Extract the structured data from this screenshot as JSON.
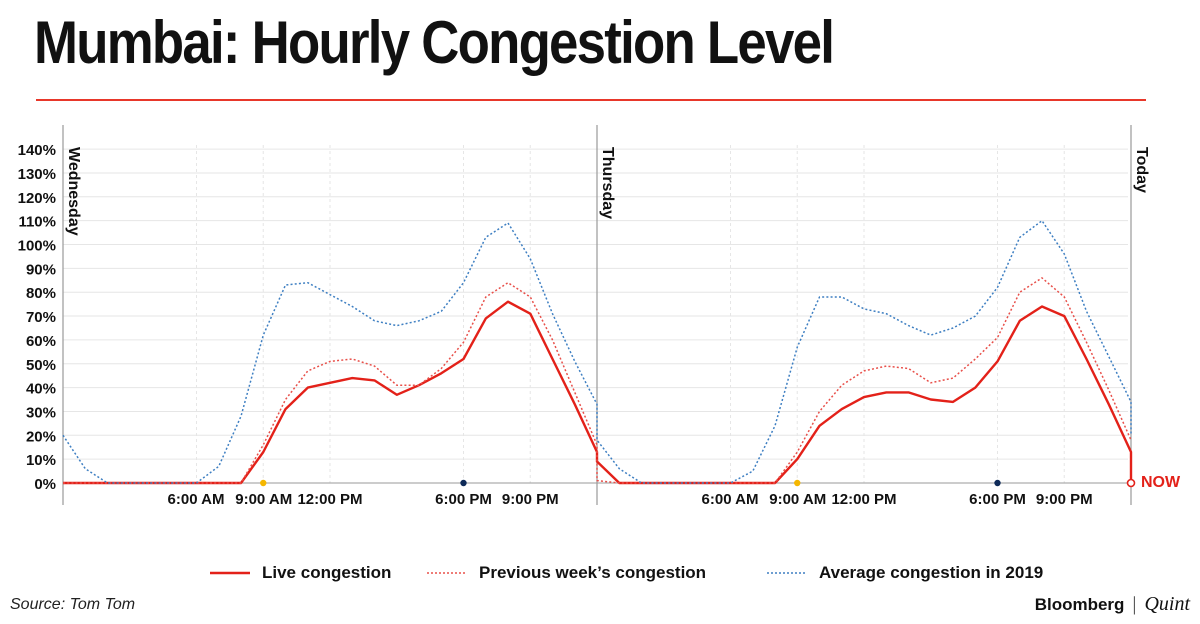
{
  "title": "Mumbai: Hourly Congestion Level",
  "colors": {
    "accent": "#e8372a",
    "live": "#e32119",
    "previous": "#e8504a",
    "average": "#3e7fc2",
    "marker_yellow": "#f5b700",
    "marker_navy": "#0e2a58",
    "grid": "#e6e6e6"
  },
  "legend": {
    "live": "Live congestion",
    "previous": "Previous week’s congestion",
    "average": "Average congestion in 2019"
  },
  "source": "Source: Tom Tom",
  "brand": {
    "primary": "Bloomberg",
    "separator": "|",
    "secondary": "Quint"
  },
  "chart_data": {
    "type": "line",
    "title": "Mumbai: Hourly Congestion Level",
    "ylim": [
      0,
      140
    ],
    "y_ticks": [
      "0%",
      "10%",
      "20%",
      "30%",
      "40%",
      "50%",
      "60%",
      "70%",
      "80%",
      "90%",
      "100%",
      "110%",
      "120%",
      "130%",
      "140%"
    ],
    "grid": true,
    "legend_position": "bottom",
    "day_labels": [
      "Wednesday",
      "Thursday",
      "Today"
    ],
    "x_tick_labels": [
      "6:00 AM",
      "9:00 AM",
      "12:00 PM",
      "6:00 PM",
      "9:00 PM"
    ],
    "x_tick_hours": [
      6,
      9,
      12,
      18,
      21
    ],
    "now_label": "NOW",
    "markers": [
      {
        "hour": 9,
        "color": "#f5b700"
      },
      {
        "hour": 18,
        "color": "#0e2a58"
      }
    ],
    "series": [
      {
        "name": "Live congestion",
        "style": "solid",
        "days": [
          [
            0,
            0,
            0,
            0,
            0,
            0,
            0,
            0,
            0,
            13,
            31,
            40,
            42,
            44,
            43,
            37,
            41,
            46,
            52,
            69,
            76,
            71,
            52,
            33,
            13
          ],
          [
            9,
            0,
            0,
            0,
            0,
            0,
            0,
            0,
            0,
            10,
            24,
            31,
            36,
            38,
            38,
            35,
            34,
            40,
            51,
            68,
            74,
            70,
            52,
            33,
            13
          ]
        ],
        "today": [
          0
        ]
      },
      {
        "name": "Previous week’s congestion",
        "style": "dotted",
        "days": [
          [
            0,
            0,
            0,
            0,
            0,
            0,
            0,
            0,
            0,
            16,
            35,
            47,
            51,
            52,
            49,
            41,
            41,
            48,
            59,
            78,
            84,
            78,
            60,
            38,
            16
          ],
          [
            1,
            0,
            0,
            0,
            0,
            0,
            0,
            0,
            0,
            13,
            30,
            41,
            47,
            49,
            48,
            42,
            44,
            52,
            61,
            80,
            86,
            78,
            59,
            39,
            18
          ]
        ],
        "today": []
      },
      {
        "name": "Average congestion in 2019",
        "style": "dotted",
        "days": [
          [
            20,
            6,
            0,
            0,
            0,
            0,
            0,
            7,
            28,
            62,
            83,
            84,
            79,
            74,
            68,
            66,
            68,
            72,
            84,
            103,
            109,
            94,
            71,
            51,
            33
          ],
          [
            18,
            6,
            0,
            0,
            0,
            0,
            0,
            5,
            24,
            57,
            78,
            78,
            73,
            71,
            66,
            62,
            65,
            70,
            82,
            103,
            110,
            96,
            72,
            53,
            34
          ]
        ],
        "today": [
          20
        ]
      }
    ]
  }
}
